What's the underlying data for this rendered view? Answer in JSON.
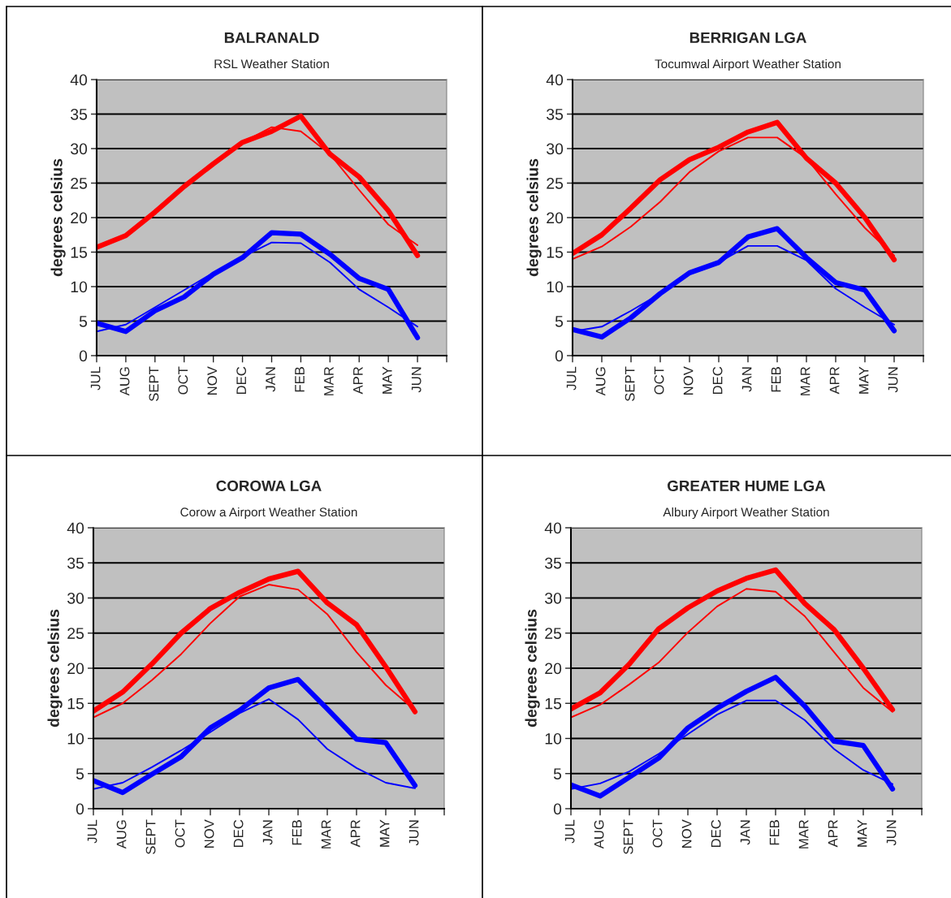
{
  "chart_data": [
    {
      "type": "line",
      "title": "BALRANALD",
      "subtitle": "RSL Weather Station",
      "ylabel": "degrees celsius",
      "categories": [
        "JUL",
        "AUG",
        "SEPT",
        "OCT",
        "NOV",
        "DEC",
        "JAN",
        "FEB",
        "MAR",
        "APR",
        "MAY",
        "JUN"
      ],
      "ylim": [
        0,
        40
      ],
      "yticks": [
        0,
        5,
        10,
        15,
        20,
        25,
        30,
        35,
        40
      ],
      "grid": "y",
      "legend": false,
      "marker": "none",
      "line_style": "solid",
      "series": [
        {
          "color": "#ff0000",
          "values": [
            15.7,
            17.4,
            20.8,
            24.5,
            27.8,
            30.9,
            32.5,
            34.7,
            29.2,
            25.9,
            21.0,
            14.5
          ]
        },
        {
          "color": "#ff0000",
          "values": [
            15.5,
            17.4,
            20.8,
            24.5,
            27.8,
            30.9,
            33.1,
            32.5,
            29.2,
            24.0,
            19.0,
            16.0
          ]
        },
        {
          "color": "#0000ff",
          "values": [
            4.7,
            3.5,
            6.5,
            8.5,
            11.8,
            14.2,
            17.8,
            17.6,
            14.7,
            11.2,
            9.6,
            2.6
          ]
        },
        {
          "color": "#0000ff",
          "values": [
            3.5,
            4.5,
            7.0,
            9.5,
            12.0,
            14.3,
            16.4,
            16.3,
            13.5,
            9.6,
            7.0,
            4.2
          ]
        }
      ]
    },
    {
      "type": "line",
      "title": "BERRIGAN LGA",
      "subtitle": "Tocumwal Airport Weather Station",
      "ylabel": "degrees celsius",
      "categories": [
        "JUL",
        "AUG",
        "SEPT",
        "OCT",
        "NOV",
        "DEC",
        "JAN",
        "FEB",
        "MAR",
        "APR",
        "MAY",
        "JUN"
      ],
      "ylim": [
        0,
        40
      ],
      "yticks": [
        0,
        5,
        10,
        15,
        20,
        25,
        30,
        35,
        40
      ],
      "grid": "y",
      "legend": false,
      "marker": "none",
      "line_style": "solid",
      "series": [
        {
          "color": "#ff0000",
          "values": [
            14.8,
            17.5,
            21.4,
            25.5,
            28.4,
            30.2,
            32.4,
            33.8,
            28.6,
            25.0,
            20.0,
            13.9
          ]
        },
        {
          "color": "#ff0000",
          "values": [
            14.0,
            15.8,
            18.7,
            22.3,
            26.6,
            29.6,
            31.6,
            31.6,
            28.6,
            23.4,
            18.5,
            14.5
          ]
        },
        {
          "color": "#0000ff",
          "values": [
            3.8,
            2.7,
            5.5,
            9.0,
            12.0,
            13.5,
            17.2,
            18.4,
            14.2,
            10.6,
            9.5,
            3.6
          ]
        },
        {
          "color": "#0000ff",
          "values": [
            3.5,
            4.2,
            6.5,
            9.0,
            12.0,
            13.5,
            15.9,
            15.9,
            13.8,
            9.7,
            7.0,
            4.5
          ]
        }
      ]
    },
    {
      "type": "line",
      "title": "COROWA LGA",
      "subtitle": "Corow a Airport Weather Station",
      "ylabel": "degrees celsius",
      "categories": [
        "JUL",
        "AUG",
        "SEPT",
        "OCT",
        "NOV",
        "DEC",
        "JAN",
        "FEB",
        "MAR",
        "APR",
        "MAY",
        "JUN"
      ],
      "ylim": [
        0,
        40
      ],
      "yticks": [
        0,
        5,
        10,
        15,
        20,
        25,
        30,
        35,
        40
      ],
      "grid": "y",
      "legend": false,
      "marker": "none",
      "line_style": "solid",
      "series": [
        {
          "color": "#ff0000",
          "values": [
            13.9,
            16.6,
            20.6,
            25.0,
            28.5,
            30.8,
            32.7,
            33.8,
            29.3,
            26.2,
            20.2,
            13.8
          ]
        },
        {
          "color": "#ff0000",
          "values": [
            13.0,
            15.0,
            18.3,
            22.0,
            26.4,
            30.2,
            31.9,
            31.2,
            27.7,
            22.3,
            17.6,
            14.0
          ]
        },
        {
          "color": "#0000ff",
          "values": [
            4.0,
            2.3,
            4.9,
            7.4,
            11.5,
            14.0,
            17.2,
            18.4,
            14.2,
            9.9,
            9.4,
            3.3
          ]
        },
        {
          "color": "#0000ff",
          "values": [
            2.8,
            3.7,
            5.9,
            8.3,
            10.9,
            13.6,
            15.6,
            12.7,
            8.5,
            5.8,
            3.7,
            2.9
          ]
        }
      ]
    },
    {
      "type": "line",
      "title": "GREATER HUME LGA",
      "subtitle": "Albury Airport Weather Station",
      "ylabel": "degrees celsius",
      "categories": [
        "JUL",
        "AUG",
        "SEPT",
        "OCT",
        "NOV",
        "DEC",
        "JAN",
        "FEB",
        "MAR",
        "APR",
        "MAY",
        "JUN"
      ],
      "ylim": [
        0,
        40
      ],
      "yticks": [
        0,
        5,
        10,
        15,
        20,
        25,
        30,
        35,
        40
      ],
      "grid": "y",
      "legend": false,
      "marker": "none",
      "line_style": "solid",
      "series": [
        {
          "color": "#ff0000",
          "values": [
            14.2,
            16.5,
            20.6,
            25.6,
            28.6,
            31.0,
            32.8,
            34.0,
            29.2,
            25.5,
            20.0,
            14.1
          ]
        },
        {
          "color": "#ff0000",
          "values": [
            13.0,
            14.8,
            17.7,
            20.8,
            25.1,
            28.8,
            31.3,
            30.9,
            27.4,
            22.3,
            17.2,
            13.8
          ]
        },
        {
          "color": "#0000ff",
          "values": [
            3.4,
            1.8,
            4.5,
            7.2,
            11.5,
            14.3,
            16.7,
            18.7,
            14.6,
            9.6,
            9.0,
            2.8
          ]
        },
        {
          "color": "#0000ff",
          "values": [
            2.8,
            3.6,
            5.3,
            7.8,
            10.6,
            13.4,
            15.4,
            15.4,
            12.6,
            8.5,
            5.5,
            3.5
          ]
        }
      ]
    }
  ]
}
